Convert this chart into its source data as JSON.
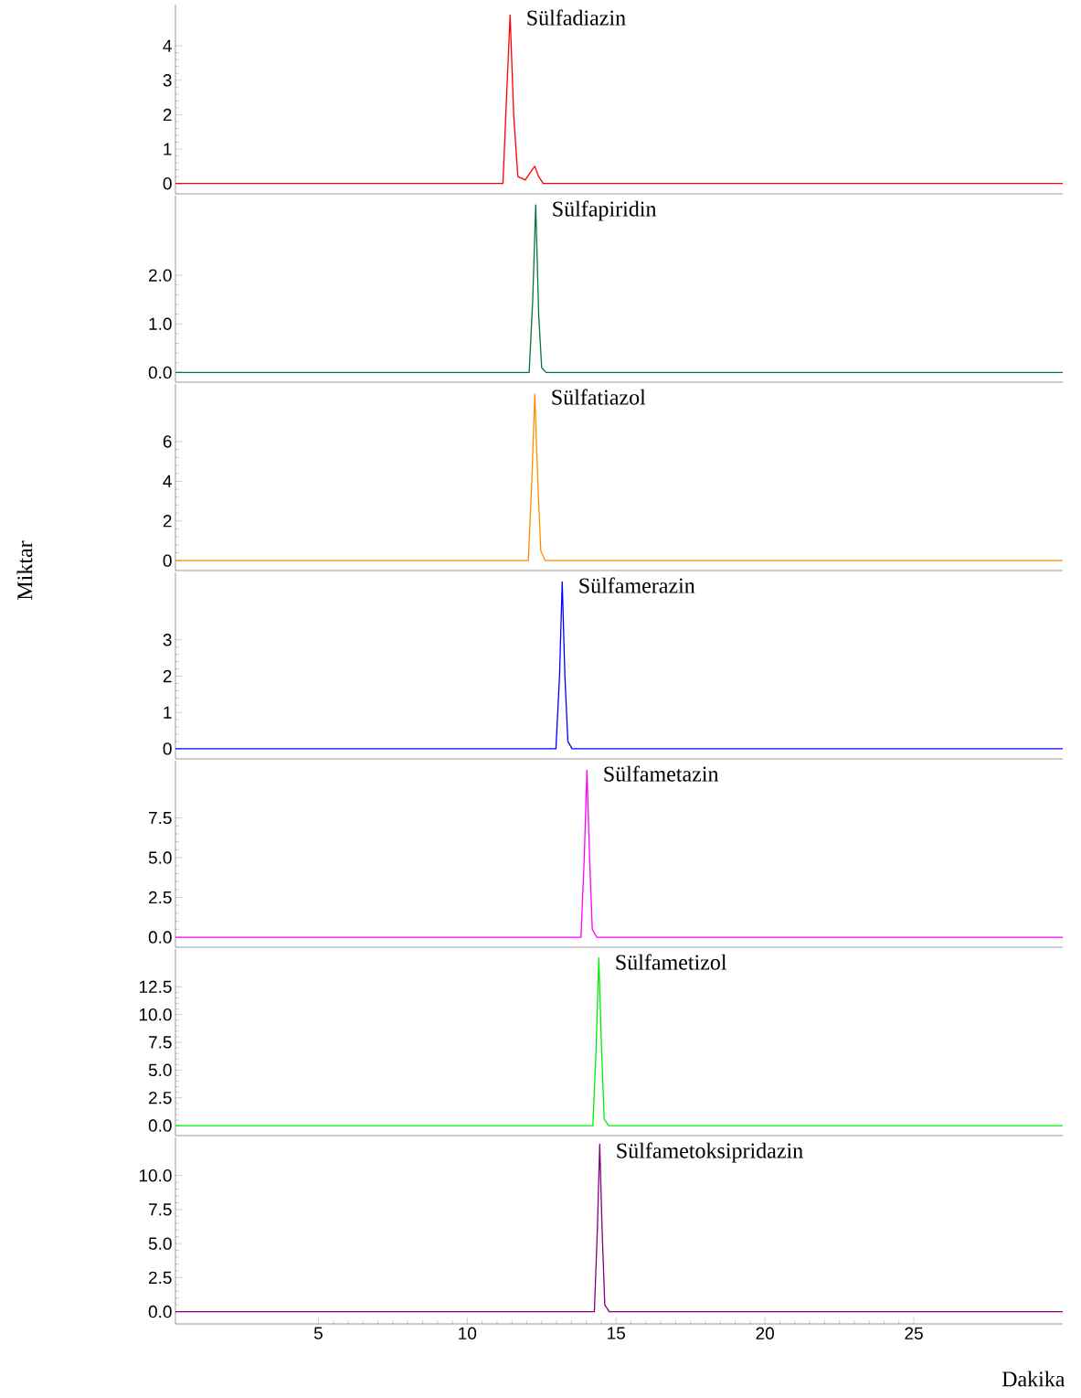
{
  "chart_data": [
    {
      "type": "line",
      "xlim": [
        0.2,
        30
      ],
      "ylim": [
        -0.3,
        5.2
      ],
      "yticks": [
        0,
        1,
        2,
        3,
        4
      ],
      "tick_labels": "y",
      "grid": false,
      "series": [
        {
          "name": "Sülfadiazin",
          "color": "#ff0000",
          "x": [
            0.2,
            11.2,
            11.32,
            11.44,
            11.56,
            11.7,
            11.95,
            12.1,
            12.27,
            12.4,
            12.55,
            30
          ],
          "values": [
            0,
            0,
            2.5,
            4.9,
            2.0,
            0.2,
            0.1,
            0.3,
            0.5,
            0.2,
            0,
            0
          ]
        }
      ]
    },
    {
      "type": "line",
      "xlim": [
        0.2,
        30
      ],
      "ylim": [
        -0.2,
        3.64
      ],
      "yticks": [
        {
          "value": 0,
          "label": "0.0"
        },
        {
          "value": 1,
          "label": "1.0"
        },
        {
          "value": 2,
          "label": "2.0"
        }
      ],
      "tick_labels": "y",
      "grid": false,
      "series": [
        {
          "name": "Sülfapiridin",
          "color": "#007a3d",
          "x": [
            0.2,
            12.08,
            12.2,
            12.3,
            12.4,
            12.5,
            12.65,
            30
          ],
          "values": [
            0,
            0,
            1.5,
            3.45,
            1.2,
            0.1,
            0,
            0
          ]
        }
      ]
    },
    {
      "type": "line",
      "xlim": [
        0.2,
        30
      ],
      "ylim": [
        -0.5,
        8.9
      ],
      "yticks": [
        0,
        2,
        4,
        6
      ],
      "tick_labels": "y",
      "grid": false,
      "ylabel": "Miktar",
      "series": [
        {
          "name": "Sülfatiazol",
          "color": "#ff8c00",
          "x": [
            0.2,
            12.05,
            12.17,
            12.27,
            12.37,
            12.47,
            12.62,
            30
          ],
          "values": [
            0,
            0,
            4,
            8.4,
            4,
            0.5,
            0,
            0
          ]
        }
      ]
    },
    {
      "type": "line",
      "xlim": [
        0.2,
        30
      ],
      "ylim": [
        -0.28,
        4.86
      ],
      "yticks": [
        0,
        1,
        2,
        3
      ],
      "tick_labels": "y",
      "grid": false,
      "series": [
        {
          "name": "Sülfamerazin",
          "color": "#0000ff",
          "x": [
            0.2,
            12.98,
            13.1,
            13.19,
            13.28,
            13.38,
            13.52,
            30
          ],
          "values": [
            0,
            0,
            2,
            4.6,
            2,
            0.2,
            0,
            0
          ]
        }
      ]
    },
    {
      "type": "line",
      "xlim": [
        0.2,
        30
      ],
      "ylim": [
        -0.63,
        11.1
      ],
      "yticks": [
        {
          "value": 0,
          "label": "0.0"
        },
        {
          "value": 2.5,
          "label": "2.5"
        },
        {
          "value": 5,
          "label": "5.0"
        },
        {
          "value": 7.5,
          "label": "7.5"
        }
      ],
      "tick_labels": "y",
      "grid": false,
      "series": [
        {
          "name": "Sülfametazin",
          "color": "#ff00ff",
          "x": [
            0.2,
            13.82,
            13.93,
            14.02,
            14.11,
            14.2,
            14.35,
            30
          ],
          "values": [
            0,
            0,
            5,
            10.5,
            5,
            0.5,
            0,
            0
          ]
        }
      ]
    },
    {
      "type": "line",
      "xlim": [
        0.2,
        30
      ],
      "ylim": [
        -0.9,
        15.9
      ],
      "yticks": [
        {
          "value": 0,
          "label": "0.0"
        },
        {
          "value": 2.5,
          "label": "2.5"
        },
        {
          "value": 5,
          "label": "5.0"
        },
        {
          "value": 7.5,
          "label": "7.5"
        },
        {
          "value": 10,
          "label": "10.0"
        },
        {
          "value": 12.5,
          "label": "12.5"
        }
      ],
      "tick_labels": "y",
      "grid": false,
      "series": [
        {
          "name": "Sülfametizol",
          "color": "#00ee00",
          "x": [
            0.2,
            14.22,
            14.33,
            14.42,
            14.51,
            14.6,
            14.75,
            30
          ],
          "values": [
            0,
            0,
            7,
            15.1,
            7,
            0.6,
            0,
            0
          ]
        }
      ]
    },
    {
      "type": "line",
      "xlim": [
        0.2,
        30
      ],
      "ylim": [
        -0.9,
        12.8
      ],
      "xticks": [
        5,
        10,
        15,
        20,
        25
      ],
      "yticks": [
        {
          "value": 0,
          "label": "0.0"
        },
        {
          "value": 2.5,
          "label": "2.5"
        },
        {
          "value": 5,
          "label": "5.0"
        },
        {
          "value": 7.5,
          "label": "7.5"
        },
        {
          "value": 10,
          "label": "10.0"
        }
      ],
      "grid": false,
      "xlabel": "Dakika",
      "series": [
        {
          "name": "Sülfametoksipridazin",
          "color": "#800080",
          "x": [
            0.2,
            14.27,
            14.37,
            14.45,
            14.53,
            14.62,
            14.77,
            30
          ],
          "values": [
            0,
            0,
            6,
            12.3,
            6,
            0.5,
            0,
            0
          ]
        }
      ]
    }
  ]
}
